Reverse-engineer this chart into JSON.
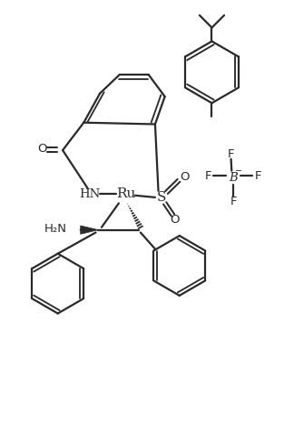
{
  "background_color": "#ffffff",
  "line_color": "#2a2a2a",
  "line_width": 1.6,
  "figsize": [
    3.24,
    4.66
  ],
  "dpi": 100,
  "xlim": [
    0,
    9
  ],
  "ylim": [
    0,
    13
  ]
}
